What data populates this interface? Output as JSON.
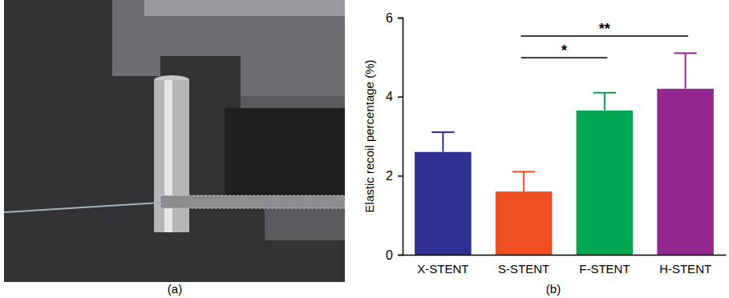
{
  "panel_labels": [
    "(a)",
    "(b)"
  ],
  "chart_data": {
    "type": "bar",
    "y_label": "Elastic recoil percentage (%)",
    "categories": [
      "X-STENT",
      "S-STENT",
      "F-STENT",
      "H-STENT"
    ],
    "values": [
      2.6,
      1.6,
      3.65,
      4.2
    ],
    "errors": [
      0.5,
      0.5,
      0.45,
      0.9
    ],
    "colors": [
      "#2e3192",
      "#f04e23",
      "#00a651",
      "#92278f"
    ],
    "ylim": [
      0,
      6
    ],
    "yticks": [
      0,
      2,
      4,
      6
    ],
    "annotations": [
      {
        "text": "*",
        "from": "S-STENT",
        "to": "F-STENT"
      },
      {
        "text": "**",
        "from": "S-STENT",
        "to": "H-STENT"
      }
    ]
  }
}
